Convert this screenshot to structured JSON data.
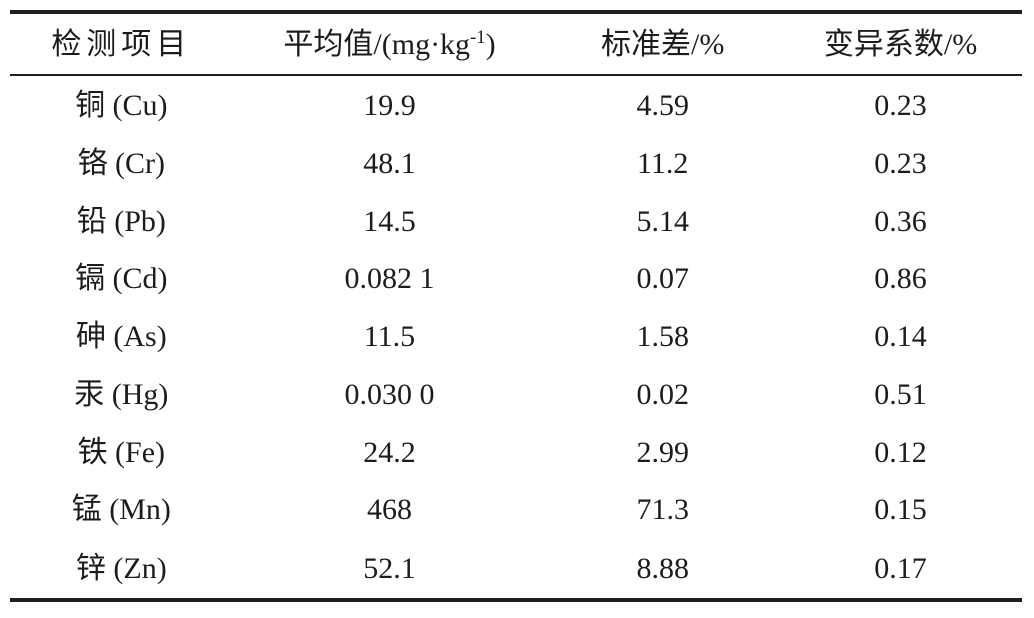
{
  "page": {
    "background_color": "#ffffff",
    "text_color": "#1c1c1c",
    "rule_color": "#1f1f1f"
  },
  "table": {
    "headers": {
      "item": "检测项目",
      "mean_prefix": "平均值/(mg·kg",
      "mean_sup": "-1",
      "mean_suffix": ")",
      "sd": "标准差/%",
      "cv": "变异系数/%"
    },
    "rows": [
      {
        "item": "铜 (Cu)",
        "mean": "19.9",
        "sd": "4.59",
        "cv": "0.23"
      },
      {
        "item": "铬 (Cr)",
        "mean": "48.1",
        "sd": "11.2",
        "cv": "0.23"
      },
      {
        "item": "铅 (Pb)",
        "mean": "14.5",
        "sd": "5.14",
        "cv": "0.36"
      },
      {
        "item": "镉 (Cd)",
        "mean": "0.082 1",
        "sd": "0.07",
        "cv": "0.86"
      },
      {
        "item": "砷 (As)",
        "mean": "11.5",
        "sd": "1.58",
        "cv": "0.14"
      },
      {
        "item": "汞 (Hg)",
        "mean": "0.030 0",
        "sd": "0.02",
        "cv": "0.51"
      },
      {
        "item": "铁 (Fe)",
        "mean": "24.2",
        "sd": "2.99",
        "cv": "0.12"
      },
      {
        "item": "锰 (Mn)",
        "mean": "468",
        "sd": "71.3",
        "cv": "0.15"
      },
      {
        "item": "锌 (Zn)",
        "mean": "52.1",
        "sd": "8.88",
        "cv": "0.17"
      }
    ]
  }
}
